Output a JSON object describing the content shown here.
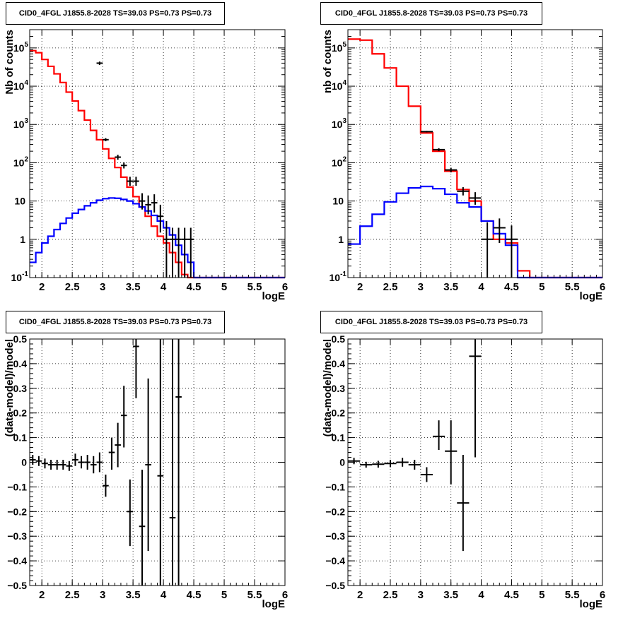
{
  "chart_data": [
    {
      "type": "histogram",
      "title": "CID0_4FGL J1855.8-2028 TS=39.03 PS=0.73 PS=0.73",
      "xlabel": "logE",
      "ylabel": "Nb of counts",
      "xlim": [
        1.8,
        6.0
      ],
      "ylim": [
        0.1,
        300000
      ],
      "log_y": true,
      "grid": true,
      "x_ticks": [
        "2",
        "2.5",
        "3",
        "3.5",
        "4",
        "4.5",
        "5",
        "5.5",
        "6"
      ],
      "y_ticks": [
        [
          "10^{-1}",
          0.1
        ],
        [
          "1",
          1
        ],
        [
          "10",
          10
        ],
        [
          "10^{2}",
          100
        ],
        [
          "10^{3}",
          1000
        ],
        [
          "10^{4}",
          10000
        ],
        [
          "10^{5}",
          100000
        ]
      ],
      "bin_edges": [
        1.8,
        1.9,
        2.0,
        2.1,
        2.2,
        2.3,
        2.4,
        2.5,
        2.6,
        2.7,
        2.8,
        2.9,
        3.0,
        3.1,
        3.2,
        3.3,
        3.4,
        3.5,
        3.6,
        3.7,
        3.8,
        3.9,
        4.0,
        4.1,
        4.2,
        4.3,
        4.4,
        4.5,
        4.6,
        4.7,
        4.8,
        4.9,
        5.0,
        5.1,
        5.2,
        5.3,
        5.4,
        5.5,
        5.6,
        5.7,
        5.8,
        5.9,
        6.0
      ],
      "series": [
        {
          "color": "#ff0000",
          "values": [
            85000,
            75000,
            50000,
            33000,
            21000,
            12500,
            7000,
            4100,
            2300,
            1300,
            700,
            400,
            230,
            130,
            75,
            42,
            23,
            13,
            7,
            4,
            2.2,
            1.2,
            0.8,
            0.45,
            0.25,
            0.12,
            0.1,
            0.1,
            0.1,
            0.1,
            0.1,
            0.1,
            0.1,
            0.1,
            0.1,
            0.1,
            0.1,
            0.1,
            0.1,
            0.1,
            0.1,
            0.1
          ]
        },
        {
          "color": "#0000ff",
          "values": [
            0.25,
            0.45,
            0.8,
            1.2,
            1.8,
            2.6,
            3.6,
            4.8,
            6.0,
            7.5,
            9.0,
            10.5,
            11.5,
            12.0,
            11.8,
            11.0,
            10.0,
            8.5,
            7.0,
            5.5,
            4.2,
            3.0,
            2.0,
            1.3,
            0.7,
            0.4,
            0.25,
            0.1,
            0.1,
            0.1,
            0.1,
            0.1,
            0.1,
            0.1,
            0.1,
            0.1,
            0.1,
            0.1,
            0.1,
            0.1,
            0.1,
            0.1
          ]
        }
      ],
      "points": [
        {
          "x": 2.95,
          "y": 40000,
          "xerr": 0.05,
          "ylo": 36000,
          "yhi": 44000
        },
        {
          "x": 3.05,
          "y": 400,
          "xerr": 0.05,
          "ylo": 365,
          "yhi": 440
        },
        {
          "x": 3.25,
          "y": 140,
          "xerr": 0.05,
          "ylo": 120,
          "yhi": 162
        },
        {
          "x": 3.35,
          "y": 85,
          "xerr": 0.05,
          "ylo": 71,
          "yhi": 102
        },
        {
          "x": 3.45,
          "y": 33,
          "xerr": 0.05,
          "ylo": 25,
          "yhi": 43
        },
        {
          "x": 3.55,
          "y": 33,
          "xerr": 0.05,
          "ylo": 25,
          "yhi": 43
        },
        {
          "x": 3.65,
          "y": 10,
          "xerr": 0.05,
          "ylo": 6,
          "yhi": 16
        },
        {
          "x": 3.75,
          "y": 8,
          "xerr": 0.05,
          "ylo": 4.5,
          "yhi": 14
        },
        {
          "x": 3.85,
          "y": 9,
          "xerr": 0.05,
          "ylo": 5,
          "yhi": 15
        },
        {
          "x": 3.95,
          "y": 4,
          "xerr": 0.05,
          "ylo": 1.5,
          "yhi": 8
        },
        {
          "x": 4.05,
          "y": 1,
          "xerr": 0.05,
          "ylo": 0.1,
          "yhi": 3
        },
        {
          "x": 4.15,
          "y": 1,
          "xerr": 0.05,
          "ylo": 0.1,
          "yhi": 2
        },
        {
          "x": 4.25,
          "y": 1,
          "xerr": 0.05,
          "ylo": 0.1,
          "yhi": 2
        },
        {
          "x": 4.35,
          "y": 1,
          "xerr": 0.05,
          "ylo": 0.1,
          "yhi": 2
        },
        {
          "x": 4.45,
          "y": 1,
          "xerr": 0.05,
          "ylo": 0.1,
          "yhi": 2
        }
      ]
    },
    {
      "type": "histogram",
      "title": "CID0_4FGL J1855.8-2028 TS=39.03 PS=0.73 PS=0.73",
      "xlabel": "logE",
      "ylabel": "nb of counts",
      "xlim": [
        1.8,
        6.0
      ],
      "ylim": [
        0.1,
        300000
      ],
      "log_y": true,
      "grid": true,
      "x_ticks": [
        "2",
        "2.5",
        "3",
        "3.5",
        "4",
        "4.5",
        "5",
        "5.5",
        "6"
      ],
      "y_ticks": [
        [
          "10^{-1}",
          0.1
        ],
        [
          "1",
          1
        ],
        [
          "10",
          10
        ],
        [
          "10^{2}",
          100
        ],
        [
          "10^{3}",
          1000
        ],
        [
          "10^{4}",
          10000
        ],
        [
          "10^{5}",
          100000
        ]
      ],
      "bin_edges": [
        1.8,
        2.0,
        2.2,
        2.4,
        2.6,
        2.8,
        3.0,
        3.2,
        3.4,
        3.6,
        3.8,
        4.0,
        4.2,
        4.4,
        4.6,
        4.8,
        5.0,
        5.2,
        5.4,
        5.6,
        5.8,
        6.0
      ],
      "series": [
        {
          "color": "#ff0000",
          "values": [
            170000,
            160000,
            70000,
            30000,
            10000,
            3000,
            600,
            200,
            60,
            20,
            10,
            3,
            1.0,
            0.8,
            0.15,
            0.1,
            0.1,
            0.1,
            0.1,
            0.1,
            0.1
          ]
        },
        {
          "color": "#0000ff",
          "values": [
            0.75,
            2.2,
            4.5,
            9.5,
            16,
            22,
            24,
            21,
            15,
            9,
            7,
            3,
            1.4,
            0.7,
            0.1,
            0.1,
            0.1,
            0.1,
            0.1,
            0.1,
            0.1
          ]
        }
      ],
      "points": [
        {
          "x": 3.1,
          "y": 650,
          "xerr": 0.1,
          "ylo": 620,
          "yhi": 680
        },
        {
          "x": 3.3,
          "y": 220,
          "xerr": 0.1,
          "ylo": 200,
          "yhi": 240
        },
        {
          "x": 3.5,
          "y": 65,
          "xerr": 0.1,
          "ylo": 56,
          "yhi": 74
        },
        {
          "x": 3.7,
          "y": 18,
          "xerr": 0.1,
          "ylo": 14,
          "yhi": 23
        },
        {
          "x": 3.9,
          "y": 12,
          "xerr": 0.1,
          "ylo": 8,
          "yhi": 17
        },
        {
          "x": 4.1,
          "y": 1,
          "xerr": 0.1,
          "ylo": 0.1,
          "yhi": 2.8
        },
        {
          "x": 4.3,
          "y": 2,
          "xerr": 0.1,
          "ylo": 0.8,
          "yhi": 3.5
        },
        {
          "x": 4.5,
          "y": 1,
          "xerr": 0.1,
          "ylo": 0.1,
          "yhi": 2.3
        }
      ]
    },
    {
      "type": "scatter",
      "title": "CID0_4FGL J1855.8-2028 TS=39.03 PS=0.73 PS=0.73",
      "xlabel": "logE",
      "ylabel": "(data-model)/model",
      "xlim": [
        1.8,
        6.0
      ],
      "ylim": [
        -0.5,
        0.5
      ],
      "grid": true,
      "x_ticks": [
        "2",
        "2.5",
        "3",
        "3.5",
        "4",
        "4.5",
        "5",
        "5.5",
        "6"
      ],
      "y_ticks": [
        "-0.5",
        "-0.4",
        "-0.3",
        "-0.2",
        "-0.1",
        "0",
        "0.1",
        "0.2",
        "0.3",
        "0.4",
        "0.5"
      ],
      "points": [
        {
          "x": 1.85,
          "y": 0.01,
          "xerr": 0.05,
          "ylo": -0.01,
          "yhi": 0.03
        },
        {
          "x": 1.95,
          "y": 0.005,
          "xerr": 0.05,
          "ylo": -0.015,
          "yhi": 0.025
        },
        {
          "x": 2.05,
          "y": -0.005,
          "xerr": 0.05,
          "ylo": -0.025,
          "yhi": 0.015
        },
        {
          "x": 2.15,
          "y": -0.01,
          "xerr": 0.05,
          "ylo": -0.03,
          "yhi": 0.01
        },
        {
          "x": 2.25,
          "y": -0.01,
          "xerr": 0.05,
          "ylo": -0.03,
          "yhi": 0.01
        },
        {
          "x": 2.35,
          "y": -0.01,
          "xerr": 0.05,
          "ylo": -0.03,
          "yhi": 0.01
        },
        {
          "x": 2.45,
          "y": -0.015,
          "xerr": 0.05,
          "ylo": -0.035,
          "yhi": 0.005
        },
        {
          "x": 2.55,
          "y": 0.01,
          "xerr": 0.05,
          "ylo": -0.015,
          "yhi": 0.035
        },
        {
          "x": 2.65,
          "y": 0.0,
          "xerr": 0.05,
          "ylo": -0.025,
          "yhi": 0.025
        },
        {
          "x": 2.75,
          "y": 0.0,
          "xerr": 0.05,
          "ylo": -0.03,
          "yhi": 0.03
        },
        {
          "x": 2.85,
          "y": -0.01,
          "xerr": 0.05,
          "ylo": -0.045,
          "yhi": 0.025
        },
        {
          "x": 2.95,
          "y": 0.0,
          "xerr": 0.05,
          "ylo": -0.04,
          "yhi": 0.04
        },
        {
          "x": 3.05,
          "y": -0.095,
          "xerr": 0.05,
          "ylo": -0.14,
          "yhi": -0.05
        },
        {
          "x": 3.15,
          "y": 0.04,
          "xerr": 0.05,
          "ylo": -0.03,
          "yhi": 0.1
        },
        {
          "x": 3.25,
          "y": 0.07,
          "xerr": 0.05,
          "ylo": -0.02,
          "yhi": 0.16
        },
        {
          "x": 3.35,
          "y": 0.19,
          "xerr": 0.05,
          "ylo": 0.06,
          "yhi": 0.31
        },
        {
          "x": 3.45,
          "y": -0.2,
          "xerr": 0.05,
          "ylo": -0.34,
          "yhi": -0.07
        },
        {
          "x": 3.55,
          "y": 0.47,
          "xerr": 0.05,
          "ylo": 0.26,
          "yhi": 0.5
        },
        {
          "x": 3.65,
          "y": -0.26,
          "xerr": 0.05,
          "ylo": -0.5,
          "yhi": -0.03
        },
        {
          "x": 3.75,
          "y": -0.01,
          "xerr": 0.05,
          "ylo": -0.36,
          "yhi": 0.34
        },
        {
          "x": 3.95,
          "y": -0.055,
          "xerr": 0.05,
          "ylo": -0.5,
          "yhi": 0.5
        },
        {
          "x": 4.15,
          "y": -0.225,
          "xerr": 0.05,
          "ylo": -0.5,
          "yhi": 0.5
        },
        {
          "x": 4.25,
          "y": 0.265,
          "xerr": 0.05,
          "ylo": -0.5,
          "yhi": 0.5
        }
      ]
    },
    {
      "type": "scatter",
      "title": "CID0_4FGL J1855.8-2028 TS=39.03 PS=0.73 PS=0.73",
      "xlabel": "logE",
      "ylabel": "(data-model)/model",
      "xlim": [
        1.8,
        6.0
      ],
      "ylim": [
        -0.5,
        0.5
      ],
      "grid": true,
      "x_ticks": [
        "2",
        "2.5",
        "3",
        "3.5",
        "4",
        "4.5",
        "5",
        "5.5",
        "6"
      ],
      "y_ticks": [
        "-0.5",
        "-0.4",
        "-0.3",
        "-0.2",
        "-0.1",
        "0",
        "0.1",
        "0.2",
        "0.3",
        "0.4",
        "0.5"
      ],
      "points": [
        {
          "x": 1.9,
          "y": 0.005,
          "xerr": 0.1,
          "ylo": -0.008,
          "yhi": 0.018
        },
        {
          "x": 2.1,
          "y": -0.01,
          "xerr": 0.1,
          "ylo": -0.022,
          "yhi": 0.002
        },
        {
          "x": 2.3,
          "y": -0.008,
          "xerr": 0.1,
          "ylo": -0.022,
          "yhi": 0.006
        },
        {
          "x": 2.5,
          "y": -0.005,
          "xerr": 0.1,
          "ylo": -0.02,
          "yhi": 0.01
        },
        {
          "x": 2.7,
          "y": 0.0,
          "xerr": 0.1,
          "ylo": -0.018,
          "yhi": 0.018
        },
        {
          "x": 2.9,
          "y": -0.01,
          "xerr": 0.1,
          "ylo": -0.03,
          "yhi": 0.01
        },
        {
          "x": 3.1,
          "y": -0.05,
          "xerr": 0.1,
          "ylo": -0.08,
          "yhi": -0.02
        },
        {
          "x": 3.3,
          "y": 0.105,
          "xerr": 0.1,
          "ylo": 0.05,
          "yhi": 0.17
        },
        {
          "x": 3.5,
          "y": 0.045,
          "xerr": 0.1,
          "ylo": -0.09,
          "yhi": 0.17
        },
        {
          "x": 3.7,
          "y": -0.165,
          "xerr": 0.1,
          "ylo": -0.36,
          "yhi": 0.03
        },
        {
          "x": 3.9,
          "y": 0.43,
          "xerr": 0.1,
          "ylo": 0.02,
          "yhi": 0.5
        }
      ]
    }
  ]
}
